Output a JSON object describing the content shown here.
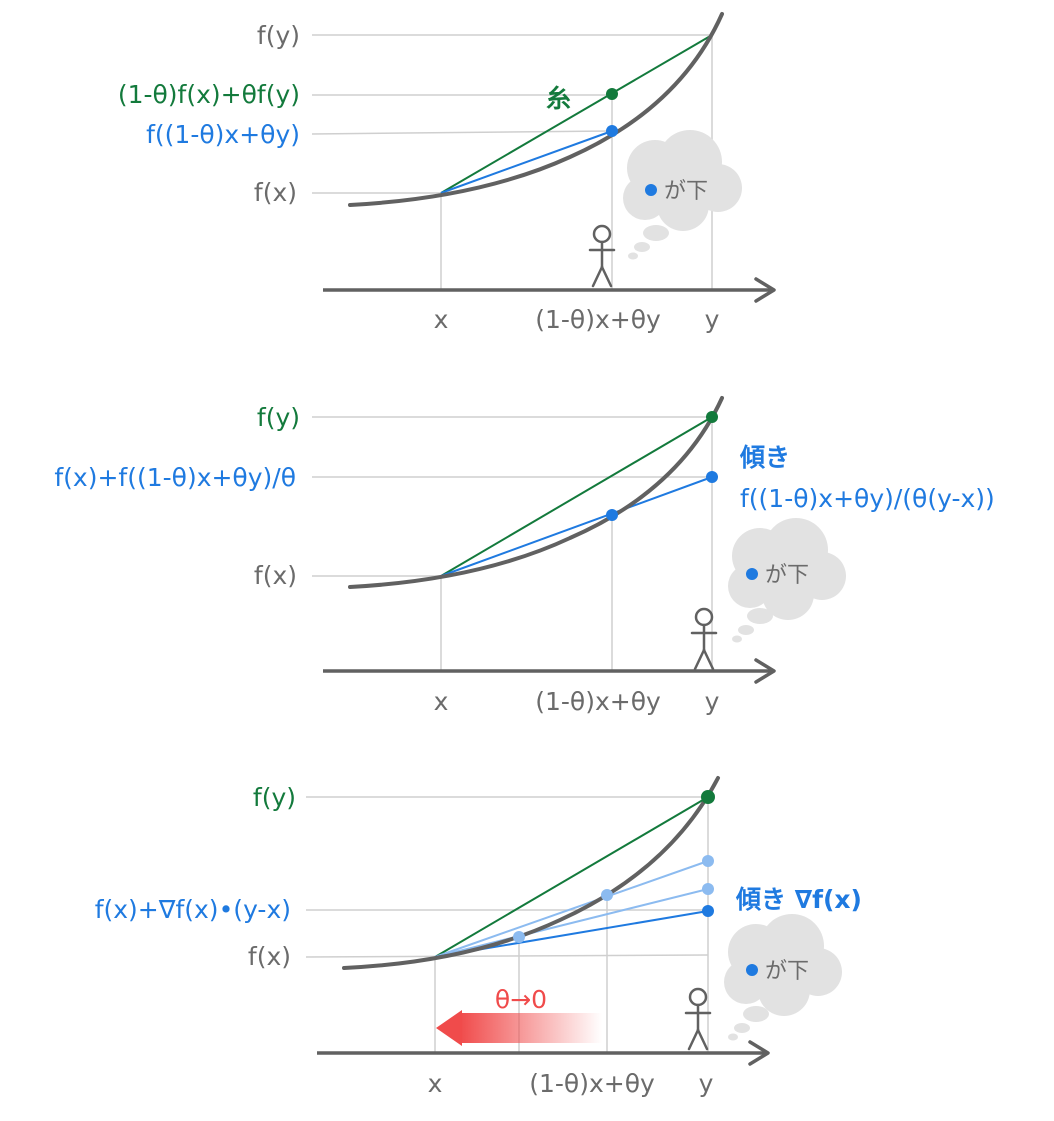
{
  "colors": {
    "curve": "#616161",
    "axis": "#616161",
    "guide": "#cfcfcf",
    "chord": "#137a3c",
    "tangent": "#1f7ae0",
    "tangent_light": "#8cbbf0",
    "arrow": "#f04b4b",
    "cloud": "#e2e2e2"
  },
  "panel1": {
    "label_fy": "f(y)",
    "label_chord": "(1-θ)f(x)+θf(y)",
    "label_fmid": "f((1-θ)x+θy)",
    "label_fx": "f(x)",
    "label_string": "糸",
    "x_x": "x",
    "x_mid": "(1-θ)x+θy",
    "x_y": "y",
    "bubble": "が下"
  },
  "panel2": {
    "label_fy": "f(y)",
    "label_proj": "f(x)+f((1-θ)x+θy)/θ",
    "label_fx": "f(x)",
    "slope_title": "傾き",
    "slope_expr": "f((1-θ)x+θy)/(θ(y-x))",
    "x_x": "x",
    "x_mid": "(1-θ)x+θy",
    "x_y": "y",
    "bubble": "が下"
  },
  "panel3": {
    "label_fy": "f(y)",
    "label_tangent": "f(x)+∇f(x)•(y-x)",
    "label_fx": "f(x)",
    "slope": "傾き ∇f(x)",
    "limit": "θ→0",
    "x_x": "x",
    "x_mid": "(1-θ)x+θy",
    "x_y": "y",
    "bubble": "が下"
  }
}
